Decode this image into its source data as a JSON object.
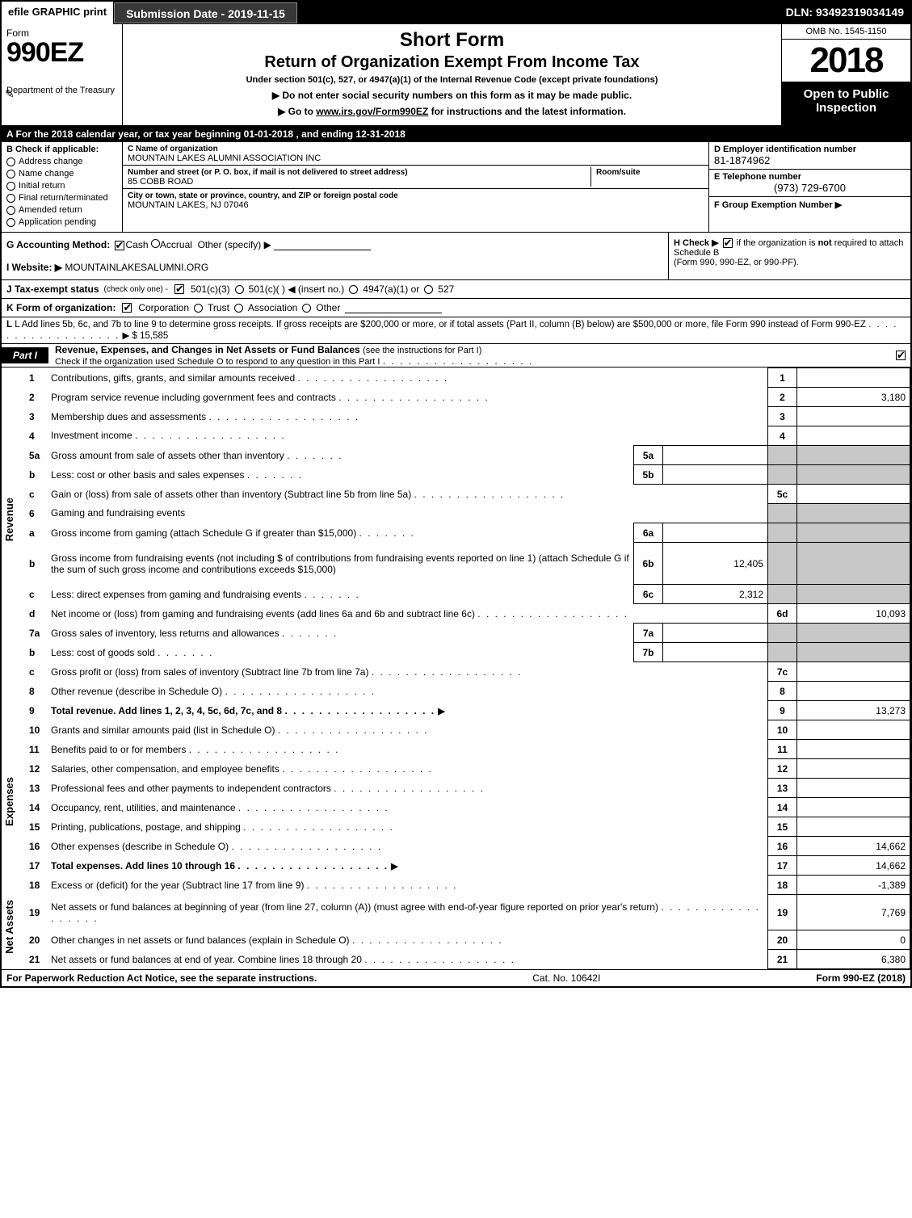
{
  "topbar": {
    "efile": "efile GRAPHIC print",
    "submission": "Submission Date - 2019-11-15",
    "dln": "DLN: 93492319034149"
  },
  "header": {
    "form_label": "Form",
    "form_number": "990EZ",
    "short_form": "Short Form",
    "title": "Return of Organization Exempt From Income Tax",
    "subtitle": "Under section 501(c), 527, or 4947(a)(1) of the Internal Revenue Code (except private foundations)",
    "instr1": "▶ Do not enter social security numbers on this form as it may be made public.",
    "instr2_pre": "▶ Go to ",
    "instr2_link": "www.irs.gov/Form990EZ",
    "instr2_post": " for instructions and the latest information.",
    "dept": "Department of the Treasury",
    "irs": "Internal Revenue Service",
    "omb": "OMB No. 1545-1150",
    "year": "2018",
    "open_public": "Open to Public Inspection"
  },
  "period": {
    "a_pre": "A For the 2018 calendar year, or tax year beginning ",
    "begin": "01-01-2018",
    "mid": " , and ending ",
    "end": "12-31-2018"
  },
  "entity": {
    "b_label": "B Check if applicable:",
    "checkboxes": [
      "Address change",
      "Name change",
      "Initial return",
      "Final return/terminated",
      "Amended return",
      "Application pending"
    ],
    "c_label": "C Name of organization",
    "c_value": "MOUNTAIN LAKES ALUMNI ASSOCIATION INC",
    "street_label": "Number and street (or P. O. box, if mail is not delivered to street address)",
    "street_value": "85 COBB ROAD",
    "room_label": "Room/suite",
    "city_label": "City or town, state or province, country, and ZIP or foreign postal code",
    "city_value": "MOUNTAIN LAKES, NJ  07046",
    "d_label": "D Employer identification number",
    "d_value": "81-1874962",
    "e_label": "E Telephone number",
    "e_value": "(973) 729-6700",
    "f_label": "F Group Exemption Number ▶",
    "f_value": ""
  },
  "meta": {
    "g_label": "G Accounting Method:",
    "g_cash": "Cash",
    "g_accrual": "Accrual",
    "g_other": "Other (specify) ▶",
    "h_label": "H Check ▶",
    "h_text1": "if the organization is ",
    "h_not": "not",
    "h_text2": " required to attach Schedule B",
    "h_text3": "(Form 990, 990-EZ, or 990-PF).",
    "i_label": "I Website: ▶",
    "i_value": "MOUNTAINLAKESALUMNI.ORG",
    "j_label": "J Tax-exempt status",
    "j_sub": "(check only one) -",
    "j_501c3": "501(c)(3)",
    "j_501c": "501(c)(   ) ◀ (insert no.)",
    "j_4947": "4947(a)(1) or",
    "j_527": "527",
    "k_label": "K Form of organization:",
    "k_corp": "Corporation",
    "k_trust": "Trust",
    "k_assoc": "Association",
    "k_other": "Other"
  },
  "l_row": {
    "text": "L Add lines 5b, 6c, and 7b to line 9 to determine gross receipts. If gross receipts are $200,000 or more, or if total assets (Part II, column (B) below) are $500,000 or more, file Form 990 instead of Form 990-EZ",
    "arrow": "▶ $",
    "value": "15,585"
  },
  "part1": {
    "tag": "Part I",
    "title": "Revenue, Expenses, and Changes in Net Assets or Fund Balances",
    "sub": "(see the instructions for Part I)",
    "check_line": "Check if the organization used Schedule O to respond to any question in this Part I"
  },
  "sections": {
    "revenue": "Revenue",
    "expenses": "Expenses",
    "netassets": "Net Assets"
  },
  "lines": [
    {
      "n": "1",
      "d": "Contributions, gifts, grants, and similar amounts received",
      "ln": "1",
      "v": ""
    },
    {
      "n": "2",
      "d": "Program service revenue including government fees and contracts",
      "ln": "2",
      "v": "3,180"
    },
    {
      "n": "3",
      "d": "Membership dues and assessments",
      "ln": "3",
      "v": ""
    },
    {
      "n": "4",
      "d": "Investment income",
      "ln": "4",
      "v": ""
    },
    {
      "n": "5a",
      "d": "Gross amount from sale of assets other than inventory",
      "sn": "5a",
      "sv": "",
      "gray": true
    },
    {
      "n": "b",
      "d": "Less: cost or other basis and sales expenses",
      "sn": "5b",
      "sv": "",
      "gray": true
    },
    {
      "n": "c",
      "d": "Gain or (loss) from sale of assets other than inventory (Subtract line 5b from line 5a)",
      "ln": "5c",
      "v": ""
    },
    {
      "n": "6",
      "d": "Gaming and fundraising events",
      "gray": true,
      "nobox": true
    },
    {
      "n": "a",
      "d": "Gross income from gaming (attach Schedule G if greater than $15,000)",
      "sn": "6a",
      "sv": "",
      "gray": true
    },
    {
      "n": "b",
      "d": "Gross income from fundraising events (not including $                    of contributions from fundraising events reported on line 1) (attach Schedule G if the sum of such gross income and contributions exceeds $15,000)",
      "sn": "6b",
      "sv": "12,405",
      "gray": true,
      "tall": true
    },
    {
      "n": "c",
      "d": "Less: direct expenses from gaming and fundraising events",
      "sn": "6c",
      "sv": "2,312",
      "gray": true
    },
    {
      "n": "d",
      "d": "Net income or (loss) from gaming and fundraising events (add lines 6a and 6b and subtract line 6c)",
      "ln": "6d",
      "v": "10,093"
    },
    {
      "n": "7a",
      "d": "Gross sales of inventory, less returns and allowances",
      "sn": "7a",
      "sv": "",
      "gray": true
    },
    {
      "n": "b",
      "d": "Less: cost of goods sold",
      "sn": "7b",
      "sv": "",
      "gray": true
    },
    {
      "n": "c",
      "d": "Gross profit or (loss) from sales of inventory (Subtract line 7b from line 7a)",
      "ln": "7c",
      "v": ""
    },
    {
      "n": "8",
      "d": "Other revenue (describe in Schedule O)",
      "ln": "8",
      "v": ""
    },
    {
      "n": "9",
      "d": "Total revenue. Add lines 1, 2, 3, 4, 5c, 6d, 7c, and 8",
      "ln": "9",
      "v": "13,273",
      "bold": true,
      "arrow": true
    },
    {
      "n": "10",
      "d": "Grants and similar amounts paid (list in Schedule O)",
      "ln": "10",
      "v": "",
      "sec": "expenses"
    },
    {
      "n": "11",
      "d": "Benefits paid to or for members",
      "ln": "11",
      "v": ""
    },
    {
      "n": "12",
      "d": "Salaries, other compensation, and employee benefits",
      "ln": "12",
      "v": ""
    },
    {
      "n": "13",
      "d": "Professional fees and other payments to independent contractors",
      "ln": "13",
      "v": ""
    },
    {
      "n": "14",
      "d": "Occupancy, rent, utilities, and maintenance",
      "ln": "14",
      "v": ""
    },
    {
      "n": "15",
      "d": "Printing, publications, postage, and shipping",
      "ln": "15",
      "v": ""
    },
    {
      "n": "16",
      "d": "Other expenses (describe in Schedule O)",
      "ln": "16",
      "v": "14,662"
    },
    {
      "n": "17",
      "d": "Total expenses. Add lines 10 through 16",
      "ln": "17",
      "v": "14,662",
      "bold": true,
      "arrow": true
    },
    {
      "n": "18",
      "d": "Excess or (deficit) for the year (Subtract line 17 from line 9)",
      "ln": "18",
      "v": "-1,389",
      "sec": "netassets"
    },
    {
      "n": "19",
      "d": "Net assets or fund balances at beginning of year (from line 27, column (A)) (must agree with end-of-year figure reported on prior year's return)",
      "ln": "19",
      "v": "7,769",
      "tall": true
    },
    {
      "n": "20",
      "d": "Other changes in net assets or fund balances (explain in Schedule O)",
      "ln": "20",
      "v": "0"
    },
    {
      "n": "21",
      "d": "Net assets or fund balances at end of year. Combine lines 18 through 20",
      "ln": "21",
      "v": "6,380"
    }
  ],
  "footer": {
    "left": "For Paperwork Reduction Act Notice, see the separate instructions.",
    "mid": "Cat. No. 10642I",
    "right": "Form 990-EZ (2018)"
  },
  "colors": {
    "black": "#000000",
    "white": "#ffffff",
    "gray_cell": "#c8c8c8",
    "dark_button": "#383838"
  }
}
